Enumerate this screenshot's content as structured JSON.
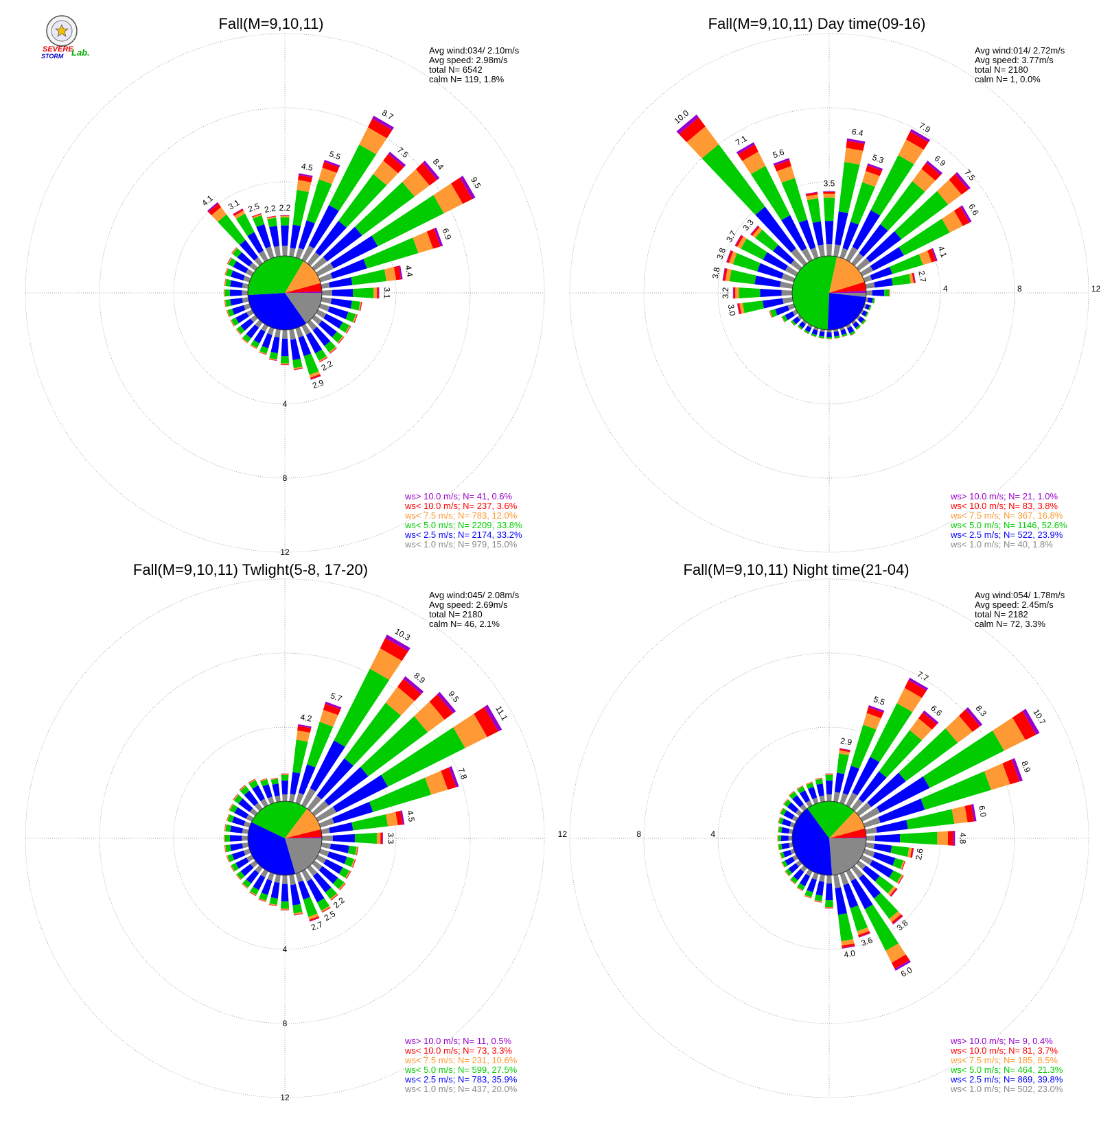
{
  "logo": {
    "text_severe": "SEVERE",
    "text_storm": "STORM",
    "text_lab": "Lab."
  },
  "colors": {
    "ws_gt10": "#9900cc",
    "ws_lt10": "#ff0000",
    "ws_lt7_5": "#ff9933",
    "ws_lt5": "#00cc00",
    "ws_lt2_5": "#0000ff",
    "ws_lt1": "#888888",
    "grid": "#888888"
  },
  "chart_data": [
    {
      "type": "wind-rose",
      "title": "Fall(M=9,10,11)",
      "stats": [
        "Avg wind:034/ 2.10m/s",
        "Avg speed: 2.98m/s",
        "total N=       6542",
        "calm N=    119,   1.8%"
      ],
      "ring_values": [
        4,
        8,
        12
      ],
      "ring_label_direction": "south",
      "legend": [
        {
          "label": "ws> 10.0 m/s; N=    41,  0.6%",
          "color": "#9900cc"
        },
        {
          "label": "ws< 10.0 m/s; N=   237,  3.6%",
          "color": "#ff0000"
        },
        {
          "label": "ws<  7.5 m/s; N=   783, 12.0%",
          "color": "#ff9933"
        },
        {
          "label": "ws<  5.0 m/s; N=  2209, 33.8%",
          "color": "#00cc00"
        },
        {
          "label": "ws<  2.5 m/s; N=  2174, 33.2%",
          "color": "#0000ff"
        },
        {
          "label": "ws<  1.0 m/s; N=   979, 15.0%",
          "color": "#888888"
        }
      ],
      "center_pie": [
        15.0,
        33.2,
        33.8,
        12.0,
        3.6,
        0.6
      ],
      "directions_deg": [
        0,
        10,
        20,
        30,
        40,
        50,
        60,
        70,
        80,
        90,
        100,
        110,
        120,
        130,
        140,
        150,
        160,
        170,
        180,
        190,
        200,
        210,
        220,
        230,
        240,
        250,
        260,
        270,
        280,
        290,
        300,
        310,
        320,
        330,
        340,
        350
      ],
      "values": [
        2.2,
        4.5,
        5.5,
        8.7,
        7.5,
        8.4,
        9.5,
        6.9,
        4.4,
        3.1,
        2.2,
        2.1,
        2.0,
        2.0,
        2.1,
        2.2,
        2.9,
        2.2,
        1.9,
        1.7,
        1.5,
        1.4,
        1.4,
        1.3,
        1.3,
        1.3,
        1.3,
        1.3,
        1.3,
        1.4,
        1.5,
        1.6,
        4.1,
        3.1,
        2.5,
        2.2
      ],
      "labels": {
        "0": "2.2",
        "10": "4.5",
        "20": "5.5",
        "30": "8.7",
        "40": "7.5",
        "50": "8.4",
        "60": "9.5",
        "70": "6.9",
        "80": "4.4",
        "90": "3.1",
        "150": "2.2",
        "160": "2.9",
        "320": "4.1",
        "330": "3.1",
        "340": "2.5",
        "350": "2.2"
      }
    },
    {
      "type": "wind-rose",
      "title": "Fall(M=9,10,11) Day time(09-16)",
      "stats": [
        "Avg wind:014/ 2.72m/s",
        "Avg speed: 3.77m/s",
        "total N=       2180",
        "calm N=       1,   0.0%"
      ],
      "ring_values": [
        4,
        8,
        12
      ],
      "ring_label_direction": "east",
      "legend": [
        {
          "label": "ws> 10.0 m/s; N=    21,  1.0%",
          "color": "#9900cc"
        },
        {
          "label": "ws< 10.0 m/s; N=    83,  3.8%",
          "color": "#ff0000"
        },
        {
          "label": "ws<  7.5 m/s; N=   367, 16.8%",
          "color": "#ff9933"
        },
        {
          "label": "ws<  5.0 m/s; N=  1146, 52.6%",
          "color": "#00cc00"
        },
        {
          "label": "ws<  2.5 m/s; N=   522, 23.9%",
          "color": "#0000ff"
        },
        {
          "label": "ws<  1.0 m/s; N=    40,  1.8%",
          "color": "#888888"
        }
      ],
      "center_pie": [
        1.8,
        23.9,
        52.6,
        16.8,
        3.8,
        1.0
      ],
      "directions_deg": [
        0,
        10,
        20,
        30,
        40,
        50,
        60,
        70,
        80,
        90,
        100,
        110,
        120,
        130,
        140,
        150,
        160,
        170,
        180,
        190,
        200,
        210,
        220,
        230,
        240,
        250,
        260,
        270,
        280,
        290,
        300,
        310,
        320,
        330,
        340,
        350
      ],
      "values": [
        3.5,
        6.4,
        5.3,
        7.9,
        6.9,
        7.5,
        6.6,
        4.1,
        2.7,
        1.3,
        0.5,
        0.4,
        0.4,
        0.5,
        0.5,
        0.6,
        0.5,
        0.5,
        0.5,
        0.5,
        0.5,
        0.5,
        0.5,
        0.6,
        0.9,
        1.4,
        3.0,
        3.2,
        3.8,
        3.8,
        3.7,
        3.3,
        10.0,
        7.1,
        5.6,
        3.5
      ],
      "labels": {
        "0": "3.5",
        "10": "6.4",
        "20": "5.3",
        "30": "7.9",
        "40": "6.9",
        "50": "7.5",
        "60": "6.6",
        "70": "4.1",
        "80": "2.7",
        "260": "3.0",
        "270": "3.2",
        "280": "3.8",
        "290": "3.8",
        "300": "3.7",
        "310": "3.3",
        "320": "10.0",
        "330": "7.1",
        "340": "5.6"
      }
    },
    {
      "type": "wind-rose",
      "title": "Fall(M=9,10,11) Twlight(5-8, 17-20)",
      "stats": [
        "Avg wind:045/ 2.08m/s",
        "Avg speed: 2.69m/s",
        "total N=       2180",
        "calm N=     46,   2.1%"
      ],
      "ring_values": [
        4,
        8,
        12
      ],
      "ring_label_direction": "south",
      "legend": [
        {
          "label": "ws> 10.0 m/s; N=    11,  0.5%",
          "color": "#9900cc"
        },
        {
          "label": "ws< 10.0 m/s; N=    73,  3.3%",
          "color": "#ff0000"
        },
        {
          "label": "ws<  7.5 m/s; N=   231, 10.6%",
          "color": "#ff9933"
        },
        {
          "label": "ws<  5.0 m/s; N=   599, 27.5%",
          "color": "#00cc00"
        },
        {
          "label": "ws<  2.5 m/s; N=   783, 35.9%",
          "color": "#0000ff"
        },
        {
          "label": "ws<  1.0 m/s; N=   437, 20.0%",
          "color": "#888888"
        }
      ],
      "center_pie": [
        20.0,
        35.9,
        27.5,
        10.6,
        3.3,
        0.5
      ],
      "directions_deg": [
        0,
        10,
        20,
        30,
        40,
        50,
        60,
        70,
        80,
        90,
        100,
        110,
        120,
        130,
        140,
        150,
        160,
        170,
        180,
        190,
        200,
        210,
        220,
        230,
        240,
        250,
        260,
        270,
        280,
        290,
        300,
        310,
        320,
        330,
        340,
        350
      ],
      "values": [
        1.5,
        4.2,
        5.7,
        10.3,
        8.9,
        9.5,
        11.1,
        7.8,
        4.5,
        3.3,
        2.0,
        2.0,
        2.0,
        2.1,
        2.2,
        2.5,
        2.7,
        2.2,
        1.9,
        1.7,
        1.6,
        1.5,
        1.4,
        1.3,
        1.3,
        1.3,
        1.3,
        1.3,
        1.3,
        1.3,
        1.4,
        1.5,
        1.6,
        1.6,
        1.4,
        1.3
      ],
      "labels": {
        "10": "4.2",
        "20": "5.7",
        "30": "10.3",
        "40": "8.9",
        "50": "9.5",
        "60": "11.1",
        "70": "7.8",
        "80": "4.5",
        "90": "3.3",
        "140": "2.2",
        "150": "2.5",
        "160": "2.7"
      }
    },
    {
      "type": "wind-rose",
      "title": "Fall(M=9,10,11) Night time(21-04)",
      "stats": [
        "Avg wind:054/ 1.78m/s",
        "Avg speed: 2.45m/s",
        "total N=       2182",
        "calm N=     72,   3.3%"
      ],
      "ring_values": [
        4,
        8,
        12
      ],
      "ring_label_direction": "west",
      "legend": [
        {
          "label": "ws> 10.0 m/s; N=     9,  0.4%",
          "color": "#9900cc"
        },
        {
          "label": "ws< 10.0 m/s; N=    81,  3.7%",
          "color": "#ff0000"
        },
        {
          "label": "ws<  7.5 m/s; N=   185,  8.5%",
          "color": "#ff9933"
        },
        {
          "label": "ws<  5.0 m/s; N=   464, 21.3%",
          "color": "#00cc00"
        },
        {
          "label": "ws<  2.5 m/s; N=   869, 39.8%",
          "color": "#0000ff"
        },
        {
          "label": "ws<  1.0 m/s; N=   502, 23.0%",
          "color": "#888888"
        }
      ],
      "center_pie": [
        23.0,
        39.8,
        21.3,
        8.5,
        3.7,
        0.4
      ],
      "directions_deg": [
        0,
        10,
        20,
        30,
        40,
        50,
        60,
        70,
        80,
        90,
        100,
        110,
        120,
        130,
        140,
        150,
        160,
        170,
        180,
        190,
        200,
        210,
        220,
        230,
        240,
        250,
        260,
        270,
        280,
        290,
        300,
        310,
        320,
        330,
        340,
        350
      ],
      "values": [
        1.5,
        2.9,
        5.5,
        7.7,
        6.6,
        8.3,
        10.7,
        8.9,
        6.0,
        4.8,
        2.6,
        2.3,
        2.5,
        2.6,
        3.8,
        6.0,
        3.6,
        4.0,
        1.8,
        1.5,
        1.4,
        1.2,
        1.1,
        1.0,
        0.9,
        0.8,
        0.8,
        0.8,
        0.8,
        0.9,
        1.0,
        1.1,
        1.2,
        1.2,
        1.2,
        1.3
      ],
      "labels": {
        "10": "2.9",
        "20": "5.5",
        "30": "7.7",
        "40": "6.6",
        "50": "8.3",
        "60": "10.7",
        "70": "8.9",
        "80": "6.0",
        "90": "4.8",
        "100": "2.6",
        "140": "3.8",
        "150": "6.0",
        "160": "3.6",
        "170": "4.0"
      }
    }
  ]
}
